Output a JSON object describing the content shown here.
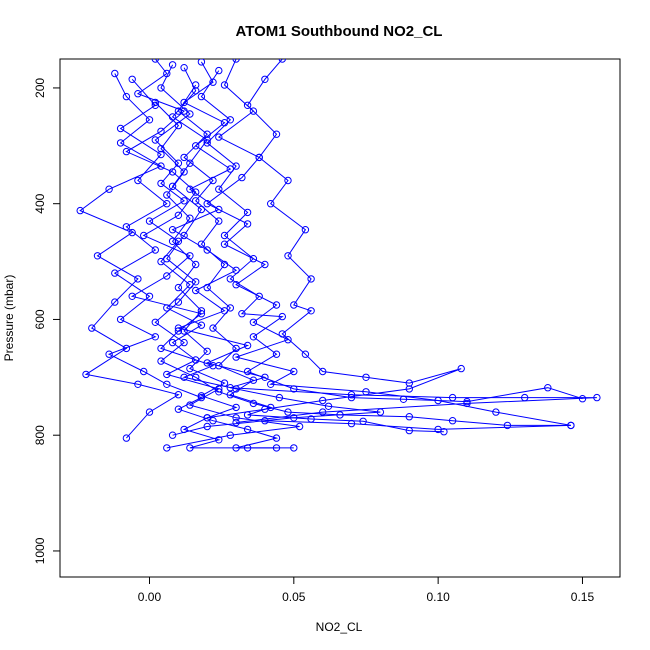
{
  "chart_data": {
    "type": "line",
    "title": "ATOM1 Southbound NO2_CL",
    "xlabel": "NO2_CL",
    "ylabel": "Pressure (mbar)",
    "xlim": [
      -0.031,
      0.163
    ],
    "ylim": [
      150,
      1045
    ],
    "y_reversed": true,
    "x_ticks": [
      "0.00",
      "0.05",
      "0.10",
      "0.15"
    ],
    "x_tick_values": [
      0.0,
      0.05,
      0.1,
      0.15
    ],
    "y_ticks": [
      "200",
      "400",
      "600",
      "800",
      "1000"
    ],
    "y_tick_values": [
      200,
      400,
      600,
      800,
      1000
    ],
    "grid": false,
    "series_color": "#0000ff",
    "marker": "open-circle",
    "series": [
      {
        "points": [
          [
            0.002,
            150
          ],
          [
            0.006,
            175
          ],
          [
            -0.004,
            210
          ],
          [
            0.012,
            240
          ],
          [
            0.004,
            275
          ],
          [
            -0.008,
            310
          ],
          [
            0.008,
            345
          ],
          [
            0.016,
            380
          ],
          [
            0.01,
            420
          ],
          [
            -0.002,
            455
          ],
          [
            0.014,
            490
          ],
          [
            0.006,
            525
          ],
          [
            -0.006,
            560
          ],
          [
            0.018,
            590
          ],
          [
            0.01,
            620
          ],
          [
            0.004,
            650
          ],
          [
            0.022,
            680
          ],
          [
            0.012,
            700
          ],
          [
            0.03,
            720
          ],
          [
            0.045,
            735
          ],
          [
            0.062,
            750
          ],
          [
            0.08,
            760
          ],
          [
            0.05,
            770
          ],
          [
            0.02,
            785
          ],
          [
            0.008,
            800
          ]
        ]
      },
      {
        "points": [
          [
            0.018,
            155
          ],
          [
            0.022,
            190
          ],
          [
            0.012,
            225
          ],
          [
            0.026,
            260
          ],
          [
            0.016,
            300
          ],
          [
            0.028,
            340
          ],
          [
            0.014,
            375
          ],
          [
            0.024,
            410
          ],
          [
            0.008,
            445
          ],
          [
            0.02,
            480
          ],
          [
            0.03,
            515
          ],
          [
            0.016,
            550
          ],
          [
            0.026,
            585
          ],
          [
            0.01,
            615
          ],
          [
            0.034,
            645
          ],
          [
            0.02,
            675
          ],
          [
            0.04,
            700
          ],
          [
            0.028,
            718
          ],
          [
            0.07,
            730
          ],
          [
            0.105,
            735
          ],
          [
            0.13,
            735
          ],
          [
            0.155,
            735
          ],
          [
            0.11,
            745
          ],
          [
            0.06,
            760
          ],
          [
            0.03,
            778
          ]
        ]
      },
      {
        "points": [
          [
            -0.012,
            175
          ],
          [
            -0.008,
            215
          ],
          [
            0.0,
            255
          ],
          [
            -0.01,
            295
          ],
          [
            0.004,
            335
          ],
          [
            -0.014,
            375
          ],
          [
            -0.024,
            412
          ],
          [
            -0.006,
            450
          ],
          [
            -0.018,
            490
          ],
          [
            -0.004,
            530
          ],
          [
            -0.012,
            570
          ],
          [
            -0.02,
            615
          ],
          [
            -0.008,
            650
          ],
          [
            -0.022,
            695
          ],
          [
            -0.004,
            712
          ],
          [
            0.01,
            730
          ],
          [
            0.0,
            760
          ],
          [
            -0.008,
            805
          ]
        ]
      },
      {
        "points": [
          [
            0.03,
            150
          ],
          [
            0.026,
            195
          ],
          [
            0.036,
            240
          ],
          [
            0.024,
            285
          ],
          [
            0.038,
            320
          ],
          [
            0.032,
            355
          ],
          [
            0.02,
            400
          ],
          [
            0.034,
            435
          ],
          [
            0.026,
            470
          ],
          [
            0.04,
            505
          ],
          [
            0.03,
            540
          ],
          [
            0.044,
            575
          ],
          [
            0.036,
            605
          ],
          [
            0.048,
            635
          ],
          [
            0.03,
            665
          ],
          [
            0.05,
            690
          ],
          [
            0.042,
            712
          ],
          [
            0.075,
            725
          ],
          [
            0.1,
            740
          ],
          [
            0.12,
            760
          ],
          [
            0.146,
            783
          ],
          [
            0.1,
            790
          ],
          [
            0.07,
            780
          ],
          [
            0.04,
            775
          ]
        ]
      },
      {
        "points": [
          [
            0.008,
            160
          ],
          [
            0.004,
            200
          ],
          [
            0.014,
            245
          ],
          [
            0.002,
            290
          ],
          [
            0.01,
            330
          ],
          [
            0.004,
            365
          ],
          [
            0.012,
            395
          ],
          [
            0.0,
            430
          ],
          [
            0.01,
            465
          ],
          [
            0.004,
            500
          ],
          [
            0.014,
            540
          ],
          [
            0.006,
            580
          ],
          [
            0.018,
            610
          ],
          [
            0.008,
            640
          ],
          [
            0.016,
            670
          ],
          [
            0.006,
            695
          ],
          [
            0.024,
            720
          ],
          [
            0.014,
            748
          ],
          [
            0.03,
            770
          ],
          [
            0.052,
            785
          ],
          [
            0.028,
            800
          ],
          [
            0.006,
            822
          ]
        ]
      },
      {
        "points": [
          [
            0.046,
            150
          ],
          [
            0.04,
            185
          ],
          [
            0.034,
            230
          ],
          [
            0.044,
            280
          ],
          [
            0.038,
            320
          ],
          [
            0.048,
            360
          ],
          [
            0.042,
            400
          ],
          [
            0.054,
            445
          ],
          [
            0.048,
            490
          ],
          [
            0.056,
            530
          ],
          [
            0.05,
            575
          ],
          [
            0.056,
            585
          ],
          [
            0.046,
            625
          ],
          [
            0.054,
            660
          ],
          [
            0.06,
            690
          ],
          [
            0.075,
            700
          ],
          [
            0.09,
            710
          ],
          [
            0.108,
            685
          ],
          [
            0.09,
            720
          ],
          [
            0.06,
            740
          ],
          [
            0.04,
            755
          ],
          [
            0.02,
            770
          ]
        ]
      },
      {
        "points": [
          [
            0.012,
            165
          ],
          [
            0.016,
            205
          ],
          [
            0.008,
            250
          ],
          [
            0.02,
            290
          ],
          [
            0.014,
            330
          ],
          [
            0.008,
            370
          ],
          [
            0.018,
            410
          ],
          [
            0.012,
            455
          ],
          [
            0.006,
            495
          ],
          [
            0.016,
            535
          ],
          [
            0.01,
            570
          ],
          [
            0.002,
            605
          ],
          [
            0.012,
            640
          ],
          [
            0.004,
            672
          ],
          [
            0.016,
            700
          ],
          [
            0.024,
            725
          ],
          [
            0.036,
            745
          ],
          [
            0.048,
            760
          ],
          [
            0.066,
            765
          ],
          [
            0.09,
            768
          ],
          [
            0.105,
            775
          ],
          [
            0.124,
            783
          ],
          [
            0.146,
            783
          ]
        ]
      },
      {
        "points": [
          [
            -0.006,
            185
          ],
          [
            0.002,
            230
          ],
          [
            -0.01,
            270
          ],
          [
            0.004,
            315
          ],
          [
            -0.004,
            360
          ],
          [
            0.006,
            400
          ],
          [
            -0.008,
            440
          ],
          [
            0.002,
            480
          ],
          [
            -0.012,
            520
          ],
          [
            0.0,
            560
          ],
          [
            -0.01,
            600
          ],
          [
            0.002,
            630
          ],
          [
            -0.014,
            660
          ],
          [
            -0.002,
            690
          ],
          [
            0.006,
            712
          ],
          [
            0.018,
            735
          ],
          [
            0.01,
            755
          ],
          [
            0.022,
            775
          ],
          [
            0.034,
            790
          ],
          [
            0.044,
            805
          ],
          [
            0.03,
            822
          ],
          [
            0.05,
            822
          ]
        ]
      },
      {
        "points": [
          [
            0.024,
            170
          ],
          [
            0.018,
            215
          ],
          [
            0.028,
            255
          ],
          [
            0.02,
            295
          ],
          [
            0.03,
            335
          ],
          [
            0.024,
            375
          ],
          [
            0.034,
            415
          ],
          [
            0.026,
            455
          ],
          [
            0.036,
            495
          ],
          [
            0.028,
            530
          ],
          [
            0.038,
            560
          ],
          [
            0.032,
            590
          ],
          [
            0.046,
            595
          ],
          [
            0.036,
            630
          ],
          [
            0.044,
            660
          ],
          [
            0.034,
            690
          ],
          [
            0.05,
            720
          ],
          [
            0.07,
            735
          ],
          [
            0.088,
            738
          ],
          [
            0.11,
            742
          ],
          [
            0.138,
            718
          ],
          [
            0.15,
            737
          ]
        ]
      },
      {
        "points": [
          [
            0.016,
            195
          ],
          [
            0.01,
            240
          ],
          [
            0.02,
            280
          ],
          [
            0.012,
            320
          ],
          [
            0.022,
            360
          ],
          [
            0.016,
            395
          ],
          [
            0.024,
            430
          ],
          [
            0.018,
            470
          ],
          [
            0.026,
            505
          ],
          [
            0.02,
            545
          ],
          [
            0.028,
            580
          ],
          [
            0.022,
            615
          ],
          [
            0.03,
            650
          ],
          [
            0.024,
            680
          ],
          [
            0.036,
            705
          ],
          [
            0.028,
            730
          ],
          [
            0.042,
            752
          ],
          [
            0.034,
            765
          ],
          [
            0.056,
            772
          ],
          [
            0.074,
            776
          ],
          [
            0.09,
            792
          ],
          [
            0.102,
            794
          ]
        ]
      },
      {
        "points": [
          [
            0.002,
            225
          ],
          [
            0.01,
            265
          ],
          [
            0.004,
            305
          ],
          [
            0.012,
            345
          ],
          [
            0.006,
            385
          ],
          [
            0.014,
            425
          ],
          [
            0.008,
            465
          ],
          [
            0.016,
            505
          ],
          [
            0.01,
            545
          ],
          [
            0.018,
            585
          ],
          [
            0.012,
            620
          ],
          [
            0.02,
            655
          ],
          [
            0.014,
            685
          ],
          [
            0.026,
            710
          ],
          [
            0.018,
            732
          ],
          [
            0.03,
            752
          ],
          [
            0.02,
            770
          ],
          [
            0.012,
            790
          ],
          [
            0.024,
            808
          ],
          [
            0.014,
            822
          ],
          [
            0.034,
            822
          ],
          [
            0.044,
            822
          ]
        ]
      }
    ]
  }
}
